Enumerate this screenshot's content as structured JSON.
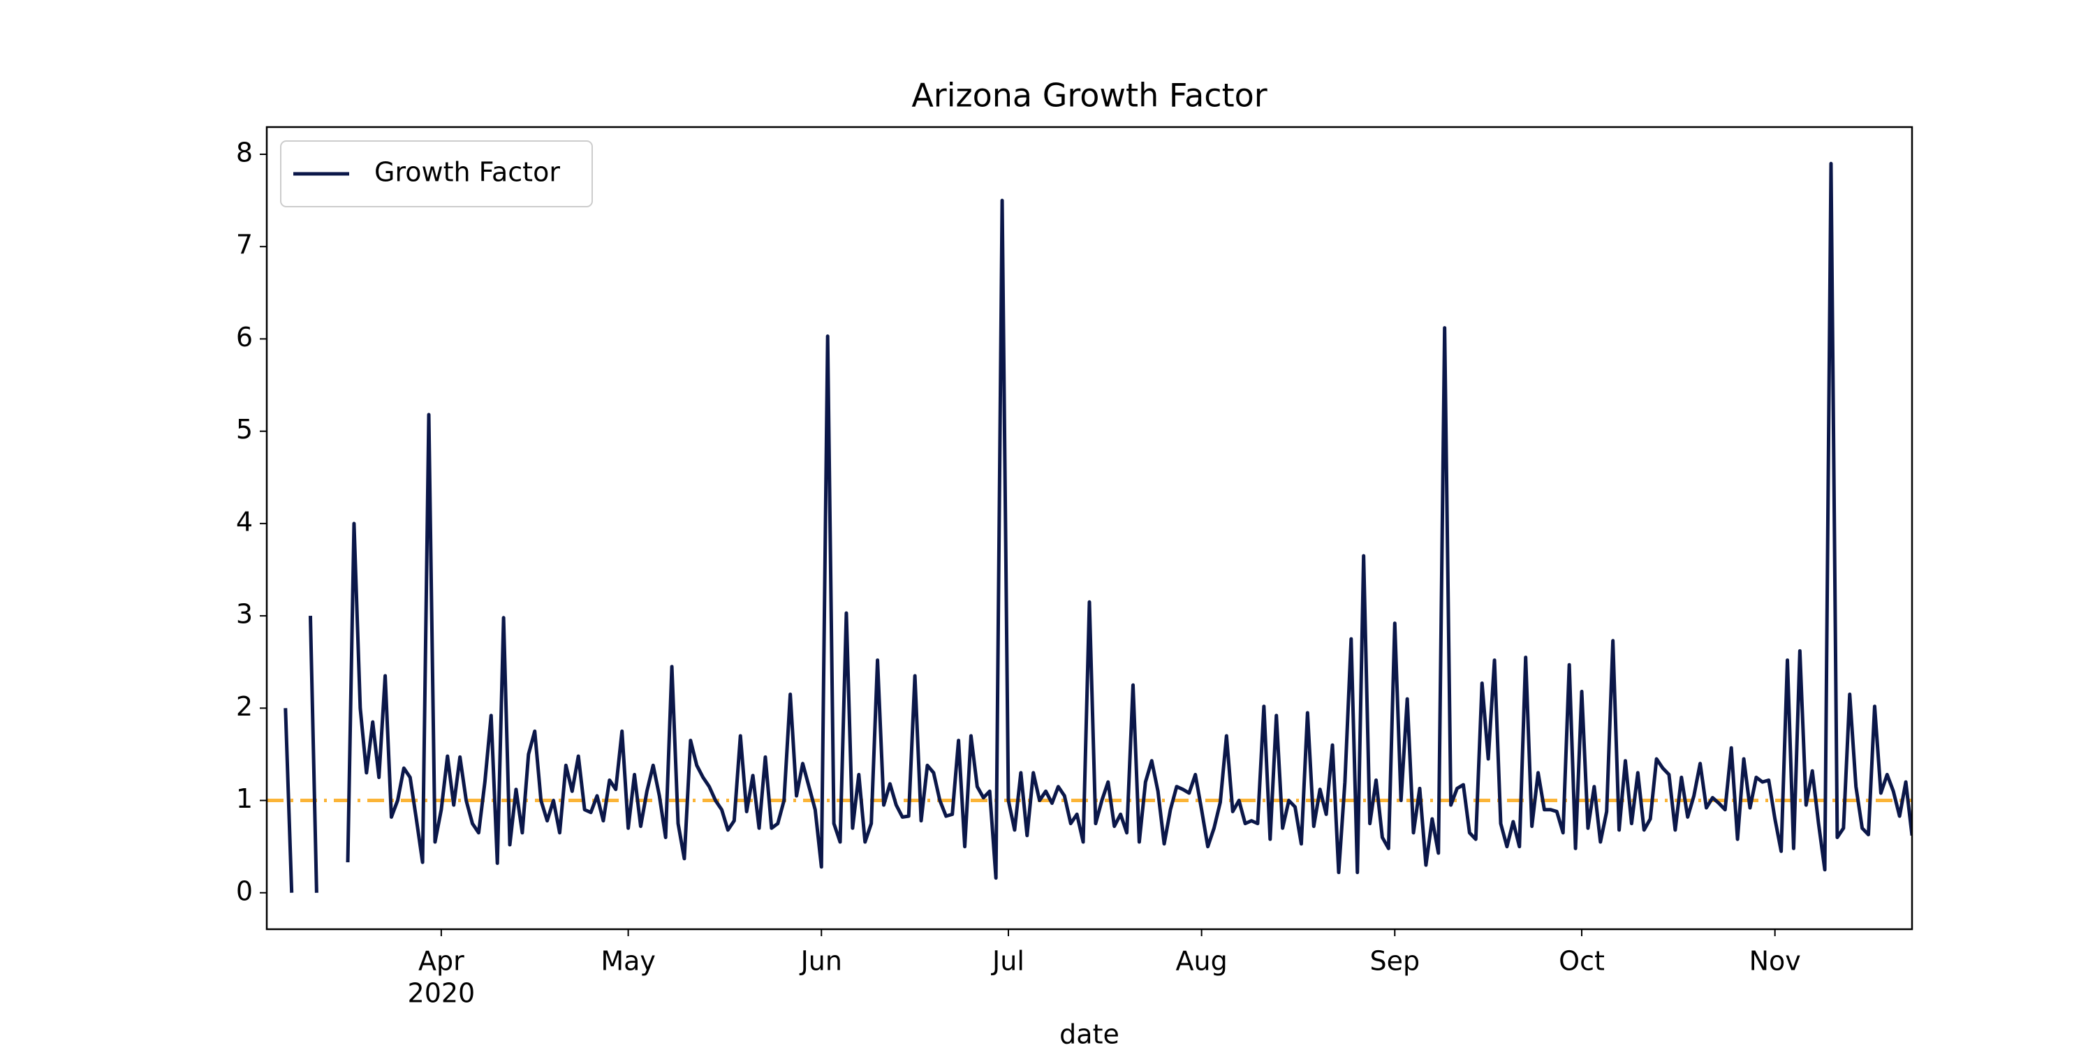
{
  "chart_data": {
    "type": "line",
    "title": "Arizona Growth Factor",
    "x_label": "date",
    "x_year_label": "2020",
    "x": [
      67,
      68,
      69,
      70,
      71,
      72,
      73,
      74,
      75,
      76,
      77,
      78,
      79,
      80,
      81,
      82,
      83,
      84,
      85,
      86,
      87,
      88,
      89,
      90,
      91,
      92,
      93,
      94,
      95,
      96,
      97,
      98,
      99,
      100,
      101,
      102,
      103,
      104,
      105,
      106,
      107,
      108,
      109,
      110,
      111,
      112,
      113,
      114,
      115,
      116,
      117,
      118,
      119,
      120,
      121,
      122,
      123,
      124,
      125,
      126,
      127,
      128,
      129,
      130,
      131,
      132,
      133,
      134,
      135,
      136,
      137,
      138,
      139,
      140,
      141,
      142,
      143,
      144,
      145,
      146,
      147,
      148,
      149,
      150,
      151,
      152,
      153,
      154,
      155,
      156,
      157,
      158,
      159,
      160,
      161,
      162,
      163,
      164,
      165,
      166,
      167,
      168,
      169,
      170,
      171,
      172,
      173,
      174,
      175,
      176,
      177,
      178,
      179,
      180,
      181,
      182,
      183,
      184,
      185,
      186,
      187,
      188,
      189,
      190,
      191,
      192,
      193,
      194,
      195,
      196,
      197,
      198,
      199,
      200,
      201,
      202,
      203,
      204,
      205,
      206,
      207,
      208,
      209,
      210,
      211,
      212,
      213,
      214,
      215,
      216,
      217,
      218,
      219,
      220,
      221,
      222,
      223,
      224,
      225,
      226,
      227,
      228,
      229,
      230,
      231,
      232,
      233,
      234,
      235,
      236,
      237,
      238,
      239,
      240,
      241,
      242,
      243,
      244,
      245,
      246,
      247,
      248,
      249,
      250,
      251,
      252,
      253,
      254,
      255,
      256,
      257,
      258,
      259,
      260,
      261,
      262,
      263,
      264,
      265,
      266,
      267,
      268,
      269,
      270,
      271,
      272,
      273,
      274,
      275,
      276,
      277,
      278,
      279,
      280,
      281,
      282,
      283,
      284,
      285,
      286,
      287,
      288,
      289,
      290,
      291,
      292,
      293,
      294,
      295,
      296,
      297,
      298,
      299,
      300,
      301,
      302,
      303,
      304,
      305,
      306,
      307,
      308,
      309,
      310,
      311,
      312,
      313,
      314,
      315,
      316,
      317,
      318,
      319,
      320,
      321,
      322,
      323,
      324,
      325,
      326,
      327,
      328
    ],
    "series": [
      {
        "name": "Growth Factor",
        "color": "#0b1749",
        "values": [
          2.0,
          0.0,
          null,
          null,
          3.0,
          0.0,
          null,
          null,
          null,
          null,
          0.33,
          4.0,
          2.0,
          1.3,
          1.85,
          1.25,
          2.35,
          0.82,
          1.0,
          1.35,
          1.25,
          0.8,
          0.33,
          5.18,
          0.55,
          0.9,
          1.48,
          0.95,
          1.47,
          1.0,
          0.75,
          0.65,
          1.2,
          1.92,
          0.32,
          2.98,
          0.52,
          1.12,
          0.65,
          1.5,
          1.75,
          1.0,
          0.78,
          1.0,
          0.65,
          1.38,
          1.1,
          1.48,
          0.9,
          0.87,
          1.05,
          0.78,
          1.22,
          1.12,
          1.75,
          0.7,
          1.28,
          0.72,
          1.1,
          1.38,
          1.05,
          0.6,
          2.45,
          0.75,
          0.37,
          1.65,
          1.38,
          1.25,
          1.15,
          1.0,
          0.9,
          0.68,
          0.78,
          1.7,
          0.88,
          1.27,
          0.7,
          1.47,
          0.7,
          0.75,
          1.0,
          2.15,
          1.05,
          1.4,
          1.15,
          0.9,
          0.28,
          6.03,
          0.75,
          0.55,
          3.03,
          0.7,
          1.28,
          0.55,
          0.75,
          2.52,
          0.95,
          1.18,
          0.95,
          0.82,
          0.83,
          2.35,
          0.78,
          1.38,
          1.3,
          1.0,
          0.83,
          0.85,
          1.65,
          0.5,
          1.7,
          1.15,
          1.03,
          1.1,
          0.16,
          7.5,
          1.0,
          0.68,
          1.3,
          0.62,
          1.3,
          1.0,
          1.1,
          0.97,
          1.15,
          1.05,
          0.75,
          0.85,
          0.55,
          3.15,
          0.75,
          1.0,
          1.2,
          0.72,
          0.85,
          0.65,
          2.25,
          0.55,
          1.2,
          1.43,
          1.1,
          0.53,
          0.9,
          1.15,
          1.12,
          1.08,
          1.28,
          0.9,
          0.5,
          0.7,
          0.98,
          1.7,
          0.88,
          1.0,
          0.75,
          0.78,
          0.75,
          2.02,
          0.58,
          1.92,
          0.7,
          1.0,
          0.93,
          0.53,
          1.95,
          0.72,
          1.12,
          0.85,
          1.6,
          0.22,
          1.2,
          2.75,
          0.22,
          3.65,
          0.75,
          1.22,
          0.6,
          0.48,
          2.92,
          1.0,
          2.1,
          0.65,
          1.13,
          0.3,
          0.8,
          0.43,
          6.12,
          0.95,
          1.13,
          1.17,
          0.65,
          0.58,
          2.27,
          1.45,
          2.52,
          0.75,
          0.5,
          0.77,
          0.5,
          2.55,
          0.72,
          1.3,
          0.9,
          0.9,
          0.88,
          0.65,
          2.47,
          0.48,
          2.18,
          0.7,
          1.15,
          0.55,
          0.88,
          2.73,
          0.68,
          1.43,
          0.75,
          1.3,
          0.68,
          0.8,
          1.45,
          1.35,
          1.28,
          0.68,
          1.25,
          0.82,
          1.05,
          1.4,
          0.92,
          1.03,
          0.97,
          0.9,
          1.57,
          0.58,
          1.45,
          0.92,
          1.25,
          1.2,
          1.22,
          0.8,
          0.45,
          2.52,
          0.48,
          2.62,
          0.95,
          1.32,
          0.75,
          0.25,
          7.9,
          0.6,
          0.7,
          2.15,
          1.15,
          0.7,
          0.63,
          2.02,
          1.08,
          1.28,
          1.1,
          0.83,
          1.2,
          0.62
        ]
      }
    ],
    "hline": {
      "value": 1,
      "color": "#fbb437"
    },
    "xlim": [
      64,
      328
    ],
    "xticks": [
      {
        "value": 92,
        "label": "Apr"
      },
      {
        "value": 122,
        "label": "May"
      },
      {
        "value": 153,
        "label": "Jun"
      },
      {
        "value": 183,
        "label": "Jul"
      },
      {
        "value": 214,
        "label": "Aug"
      },
      {
        "value": 245,
        "label": "Sep"
      },
      {
        "value": 275,
        "label": "Oct"
      },
      {
        "value": 306,
        "label": "Nov"
      }
    ],
    "ylim": [
      -0.395,
      8.295
    ],
    "yticks": [
      0,
      1,
      2,
      3,
      4,
      5,
      6,
      7,
      8
    ],
    "legend": "upper left"
  }
}
